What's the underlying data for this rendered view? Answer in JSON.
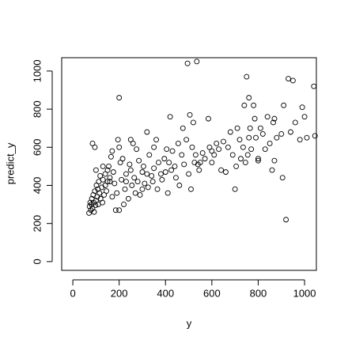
{
  "chart_data": {
    "type": "scatter",
    "x_label": "y",
    "y_label": "predict_y",
    "xlim": [
      -48,
      1051
    ],
    "ylim": [
      -46,
      1070
    ],
    "xticks": [
      0,
      200,
      400,
      600,
      800,
      1000
    ],
    "yticks": [
      0,
      200,
      400,
      600,
      800,
      1000
    ],
    "color": "#000000",
    "x": [
      70,
      72,
      75,
      78,
      80,
      82,
      85,
      88,
      90,
      92,
      95,
      98,
      100,
      102,
      105,
      108,
      110,
      112,
      115,
      118,
      120,
      125,
      128,
      130,
      135,
      140,
      145,
      150,
      155,
      160,
      165,
      170,
      175,
      180,
      185,
      190,
      195,
      200,
      205,
      210,
      215,
      220,
      225,
      230,
      240,
      245,
      250,
      255,
      260,
      265,
      270,
      275,
      280,
      285,
      290,
      300,
      305,
      310,
      320,
      325,
      330,
      340,
      345,
      350,
      360,
      365,
      370,
      380,
      385,
      395,
      400,
      405,
      410,
      415,
      420,
      425,
      430,
      440,
      445,
      455,
      460,
      470,
      475,
      480,
      490,
      495,
      500,
      505,
      510,
      515,
      520,
      525,
      530,
      535,
      545,
      550,
      560,
      570,
      585,
      590,
      600,
      610,
      620,
      630,
      640,
      650,
      660,
      670,
      680,
      690,
      700,
      705,
      710,
      720,
      725,
      735,
      740,
      745,
      750,
      755,
      760,
      765,
      770,
      780,
      785,
      790,
      800,
      810,
      820,
      830,
      840,
      850,
      860,
      865,
      870,
      880,
      900,
      905,
      910,
      920,
      930,
      940,
      950,
      960,
      980,
      990,
      1000,
      1010,
      1040,
      1045,
      85,
      95,
      100,
      130,
      140,
      150,
      160,
      170,
      200,
      200,
      230,
      250,
      300,
      320,
      350,
      540,
      600,
      760,
      800,
      870
    ],
    "y": [
      255,
      290,
      310,
      270,
      300,
      330,
      280,
      350,
      310,
      260,
      370,
      295,
      320,
      400,
      340,
      380,
      300,
      420,
      360,
      450,
      330,
      390,
      310,
      430,
      350,
      400,
      370,
      420,
      500,
      440,
      550,
      580,
      470,
      410,
      270,
      360,
      640,
      600,
      520,
      430,
      540,
      300,
      380,
      460,
      330,
      510,
      480,
      400,
      620,
      440,
      360,
      590,
      420,
      530,
      350,
      470,
      500,
      410,
      680,
      390,
      560,
      450,
      420,
      490,
      640,
      380,
      520,
      460,
      430,
      540,
      470,
      590,
      360,
      520,
      760,
      480,
      580,
      500,
      440,
      620,
      400,
      560,
      700,
      510,
      640,
      1040,
      460,
      770,
      380,
      600,
      730,
      520,
      560,
      1050,
      480,
      520,
      570,
      540,
      750,
      600,
      580,
      560,
      620,
      590,
      480,
      630,
      470,
      600,
      680,
      560,
      380,
      500,
      700,
      640,
      540,
      600,
      820,
      520,
      970,
      560,
      650,
      700,
      590,
      820,
      750,
      650,
      540,
      700,
      670,
      590,
      760,
      620,
      480,
      730,
      750,
      650,
      670,
      440,
      820,
      220,
      960,
      680,
      950,
      730,
      640,
      810,
      760,
      650,
      920,
      660,
      620,
      600,
      480,
      500,
      460,
      480,
      420,
      340,
      270,
      860,
      420,
      640,
      380,
      460,
      600,
      510,
      520,
      860,
      530,
      530
    ]
  }
}
